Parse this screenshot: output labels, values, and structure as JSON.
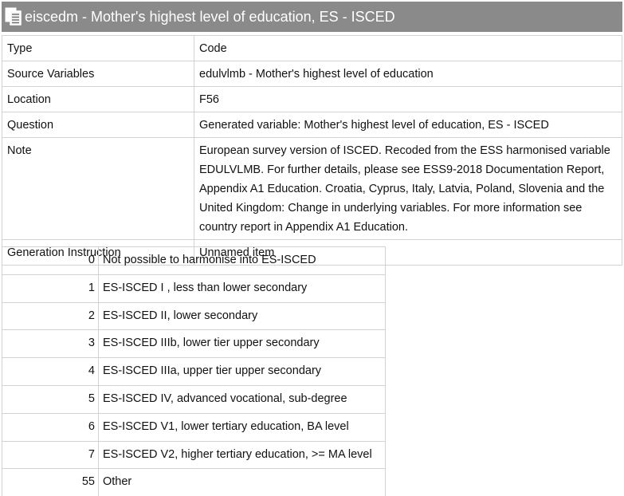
{
  "title": {
    "text": "eiscedm - Mother's highest level of education, ES - ISCED",
    "icon": "table-document-icon"
  },
  "metadata": [
    {
      "label": "Type",
      "value": "Code"
    },
    {
      "label": "Source Variables",
      "value": "edulvlmb - Mother's highest level of education"
    },
    {
      "label": "Location",
      "value": "F56"
    },
    {
      "label": "Question",
      "value": "Generated variable: Mother's highest level of education, ES - ISCED"
    },
    {
      "label": "Note",
      "value": "European survey version of ISCED. Recoded from the ESS harmonised variable EDULVLMB. For further details, please see ESS9-2018 Documentation Report, Appendix A1 Education. Croatia, Cyprus, Italy, Latvia, Poland, Slovenia and the United Kingdom: Change in underlying variables. For more information see country report in Appendix A1 Education."
    },
    {
      "label": "Generation Instruction",
      "value": "Unnamed item"
    }
  ],
  "codes": [
    {
      "code": "0",
      "label": "Not possible to harmonise into ES-ISCED"
    },
    {
      "code": "1",
      "label": "ES-ISCED I , less than lower secondary"
    },
    {
      "code": "2",
      "label": "ES-ISCED II, lower secondary"
    },
    {
      "code": "3",
      "label": "ES-ISCED IIIb, lower tier upper secondary"
    },
    {
      "code": "4",
      "label": "ES-ISCED IIIa, upper tier upper secondary"
    },
    {
      "code": "5",
      "label": "ES-ISCED IV, advanced vocational, sub-degree"
    },
    {
      "code": "6",
      "label": "ES-ISCED V1, lower tertiary education, BA level"
    },
    {
      "code": "7",
      "label": "ES-ISCED V2, higher tertiary education, >= MA level"
    },
    {
      "code": "55",
      "label": "Other"
    }
  ]
}
